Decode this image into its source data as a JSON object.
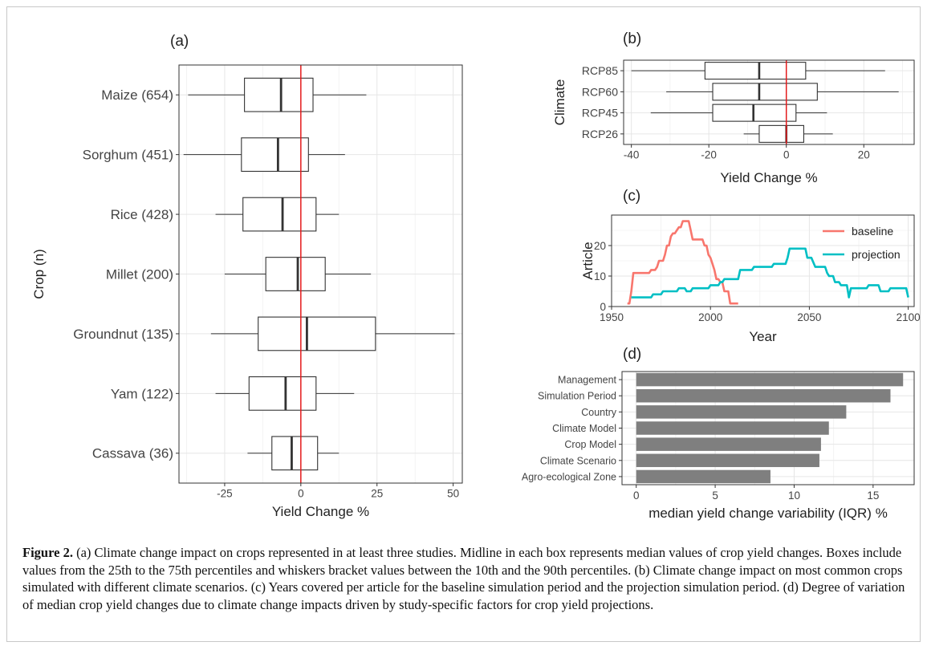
{
  "caption": {
    "label": "Figure 2.",
    "text": " (a) Climate change impact on crops represented in at least three studies. Midline in each box represents median values of crop yield changes. Boxes include values from the 25th to the 75th percentiles and whiskers bracket values between the 10th and the 90th percentiles. (b) Climate change impact on most common crops simulated with different climate scenarios. (c) Years covered per article for the baseline simulation period and the projection simulation period. (d) Degree of variation of median crop yield changes due to climate change impacts driven by study-specific factors for crop yield projections."
  },
  "chart_data": [
    {
      "panel": "(a)",
      "type": "box",
      "xlabel": "Yield Change %",
      "ylabel": "Crop (n)",
      "xlim": [
        -40,
        53
      ],
      "xticks": [
        -25,
        0,
        25,
        50
      ],
      "reference_line": {
        "x": 0,
        "color": "#e41a1c"
      },
      "categories": [
        "Maize (654)",
        "Sorghum (451)",
        "Rice (428)",
        "Millet (200)",
        "Groundnut (135)",
        "Yam (122)",
        "Cassava (36)"
      ],
      "boxes": [
        {
          "p10": -37,
          "q1": -18.5,
          "median": -6.5,
          "q3": 4,
          "p90": 21.5
        },
        {
          "p10": -38.5,
          "q1": -19.5,
          "median": -7.5,
          "q3": 2.5,
          "p90": 14.5
        },
        {
          "p10": -28,
          "q1": -19,
          "median": -6,
          "q3": 5,
          "p90": 12.5
        },
        {
          "p10": -25,
          "q1": -11.5,
          "median": -1,
          "q3": 8,
          "p90": 23
        },
        {
          "p10": -29.5,
          "q1": -14,
          "median": 2,
          "q3": 24.5,
          "p90": 50.5
        },
        {
          "p10": -28,
          "q1": -17,
          "median": -5,
          "q3": 5,
          "p90": 17.5
        },
        {
          "p10": -17.5,
          "q1": -9.5,
          "median": -3,
          "q3": 5.5,
          "p90": 12.5
        }
      ],
      "grid": true
    },
    {
      "panel": "(b)",
      "type": "box",
      "xlabel": "Yield Change %",
      "ylabel": "Climate",
      "xlim": [
        -42,
        33
      ],
      "xticks": [
        -40,
        -20,
        0,
        20
      ],
      "reference_line": {
        "x": 0,
        "color": "#e41a1c"
      },
      "categories": [
        "RCP85",
        "RCP60",
        "RCP45",
        "RCP26"
      ],
      "boxes": [
        {
          "p10": -40,
          "q1": -21,
          "median": -7,
          "q3": 5,
          "p90": 25.5
        },
        {
          "p10": -31,
          "q1": -19,
          "median": -7,
          "q3": 8,
          "p90": 29
        },
        {
          "p10": -35,
          "q1": -19,
          "median": -8.5,
          "q3": 2.5,
          "p90": 10.5
        },
        {
          "p10": -11,
          "q1": -7,
          "median": 0,
          "q3": 4.5,
          "p90": 12
        }
      ],
      "grid": true
    },
    {
      "panel": "(c)",
      "type": "line",
      "xlabel": "Year",
      "ylabel": "Article",
      "xlim": [
        1950,
        2103
      ],
      "ylim": [
        0,
        30
      ],
      "xticks": [
        1950,
        2000,
        2050,
        2100
      ],
      "yticks": [
        0,
        10,
        20
      ],
      "legend_position": "right",
      "series": [
        {
          "name": "baseline",
          "color": "#f8766d",
          "points": [
            [
              1958,
              1
            ],
            [
              1959,
              1
            ],
            [
              1960,
              5
            ],
            [
              1961,
              11
            ],
            [
              1963,
              11
            ],
            [
              1969,
              11
            ],
            [
              1970,
              12
            ],
            [
              1972,
              12
            ],
            [
              1973,
              13
            ],
            [
              1974,
              15
            ],
            [
              1976,
              15
            ],
            [
              1977,
              17
            ],
            [
              1978,
              20
            ],
            [
              1979,
              20
            ],
            [
              1980,
              23
            ],
            [
              1981,
              24
            ],
            [
              1982,
              24
            ],
            [
              1983,
              25
            ],
            [
              1984,
              26
            ],
            [
              1985,
              26
            ],
            [
              1986,
              28
            ],
            [
              1989,
              28
            ],
            [
              1990,
              25
            ],
            [
              1991,
              22
            ],
            [
              1996,
              22
            ],
            [
              1997,
              20
            ],
            [
              1998,
              20
            ],
            [
              1999,
              17
            ],
            [
              2000,
              16
            ],
            [
              2001,
              14
            ],
            [
              2002,
              12
            ],
            [
              2003,
              9
            ],
            [
              2004,
              9
            ],
            [
              2005,
              8
            ],
            [
              2006,
              8
            ],
            [
              2007,
              5
            ],
            [
              2009,
              5
            ],
            [
              2010,
              1
            ],
            [
              2014,
              1
            ]
          ]
        },
        {
          "name": "projection",
          "color": "#00bfc4",
          "points": [
            [
              1960,
              3
            ],
            [
              1970,
              3
            ],
            [
              1971,
              4
            ],
            [
              1975,
              4
            ],
            [
              1976,
              5
            ],
            [
              1983,
              5
            ],
            [
              1984,
              6
            ],
            [
              1987,
              6
            ],
            [
              1988,
              5
            ],
            [
              1990,
              5
            ],
            [
              1991,
              6
            ],
            [
              1999,
              6
            ],
            [
              2000,
              7
            ],
            [
              2004,
              7
            ],
            [
              2005,
              8
            ],
            [
              2006,
              8
            ],
            [
              2007,
              9
            ],
            [
              2014,
              9
            ],
            [
              2015,
              12
            ],
            [
              2021,
              12
            ],
            [
              2022,
              13
            ],
            [
              2031,
              13
            ],
            [
              2032,
              14
            ],
            [
              2038,
              14
            ],
            [
              2039,
              16
            ],
            [
              2040,
              19
            ],
            [
              2048,
              19
            ],
            [
              2049,
              16
            ],
            [
              2051,
              16
            ],
            [
              2053,
              13
            ],
            [
              2058,
              13
            ],
            [
              2059,
              11
            ],
            [
              2060,
              10
            ],
            [
              2062,
              10
            ],
            [
              2063,
              8
            ],
            [
              2065,
              8
            ],
            [
              2066,
              7
            ],
            [
              2069,
              7
            ],
            [
              2070,
              3
            ],
            [
              2071,
              6
            ],
            [
              2079,
              6
            ],
            [
              2080,
              7
            ],
            [
              2085,
              7
            ],
            [
              2086,
              5
            ],
            [
              2090,
              5
            ],
            [
              2091,
              6
            ],
            [
              2099,
              6
            ],
            [
              2100,
              3
            ]
          ]
        }
      ],
      "grid": true
    },
    {
      "panel": "(d)",
      "type": "bar",
      "orientation": "horizontal",
      "xlabel": "median yield change variability (IQR) %",
      "xlim": [
        -0.9,
        17.6
      ],
      "xticks": [
        0,
        5,
        10,
        15
      ],
      "categories": [
        "Management",
        "Simulation Period",
        "Country",
        "Climate Model",
        "Crop Model",
        "Climate Scenario",
        "Agro-ecological Zone"
      ],
      "values": [
        16.9,
        16.1,
        13.3,
        12.2,
        11.7,
        11.6,
        8.5
      ],
      "bar_color": "#7f7f7f",
      "grid": true
    }
  ]
}
